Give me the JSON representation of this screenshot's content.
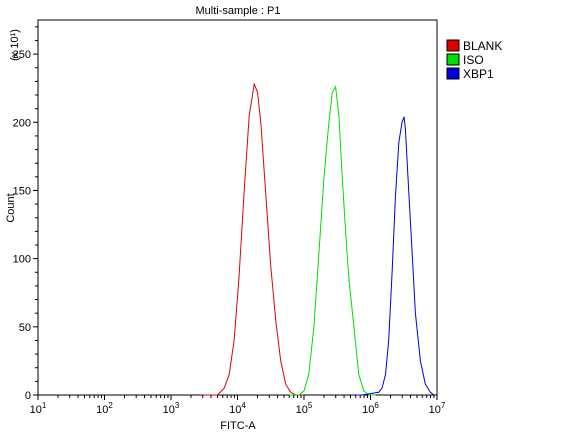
{
  "chart_data": {
    "type": "line",
    "title": "Multi-sample : P1",
    "xlabel": "FITC-A",
    "ylabel": "Count",
    "y_multiplier": "(x 10¹)",
    "x_scale": "log",
    "xlim": [
      10,
      10000000
    ],
    "ylim": [
      0,
      275
    ],
    "x_ticks": [
      {
        "value": 10,
        "base": "10",
        "exp": "1"
      },
      {
        "value": 100,
        "base": "10",
        "exp": "2"
      },
      {
        "value": 1000,
        "base": "10",
        "exp": "3"
      },
      {
        "value": 10000,
        "base": "10",
        "exp": "4"
      },
      {
        "value": 100000,
        "base": "10",
        "exp": "5"
      },
      {
        "value": 1000000,
        "base": "10",
        "exp": "6"
      },
      {
        "value": 10000000,
        "base": "10",
        "exp": "7"
      }
    ],
    "y_ticks": [
      0,
      50,
      100,
      150,
      200,
      250
    ],
    "legend_position": "right",
    "series": [
      {
        "name": "BLANK",
        "color": "#e00000",
        "points": [
          [
            3000,
            0
          ],
          [
            5000,
            0
          ],
          [
            6300,
            5
          ],
          [
            7500,
            15
          ],
          [
            8900,
            40
          ],
          [
            10500,
            85
          ],
          [
            12600,
            150
          ],
          [
            15000,
            205
          ],
          [
            17800,
            228
          ],
          [
            20000,
            222
          ],
          [
            22400,
            200
          ],
          [
            25100,
            165
          ],
          [
            28200,
            130
          ],
          [
            31600,
            95
          ],
          [
            37600,
            55
          ],
          [
            44700,
            25
          ],
          [
            53100,
            8
          ],
          [
            63100,
            2
          ],
          [
            75000,
            0
          ],
          [
            100000,
            0
          ]
        ]
      },
      {
        "name": "ISO",
        "color": "#00dd00",
        "points": [
          [
            60000,
            0
          ],
          [
            84000,
            0
          ],
          [
            100000,
            3
          ],
          [
            118000,
            15
          ],
          [
            141000,
            50
          ],
          [
            168000,
            105
          ],
          [
            200000,
            160
          ],
          [
            237000,
            200
          ],
          [
            266000,
            222
          ],
          [
            299000,
            226
          ],
          [
            335000,
            205
          ],
          [
            376000,
            160
          ],
          [
            422000,
            120
          ],
          [
            473000,
            85
          ],
          [
            562000,
            50
          ],
          [
            668000,
            15
          ],
          [
            794000,
            3
          ],
          [
            944000,
            0
          ],
          [
            1200000,
            0
          ]
        ]
      },
      {
        "name": "XBP1",
        "color": "#0000dd",
        "points": [
          [
            600000,
            0
          ],
          [
            750000,
            0
          ],
          [
            1000000,
            1
          ],
          [
            1330000,
            2
          ],
          [
            1490000,
            5
          ],
          [
            1680000,
            15
          ],
          [
            1880000,
            40
          ],
          [
            2110000,
            90
          ],
          [
            2370000,
            145
          ],
          [
            2660000,
            185
          ],
          [
            2980000,
            200
          ],
          [
            3200000,
            204
          ],
          [
            3350000,
            195
          ],
          [
            3760000,
            150
          ],
          [
            4220000,
            105
          ],
          [
            4730000,
            60
          ],
          [
            5620000,
            25
          ],
          [
            6680000,
            8
          ],
          [
            7940000,
            2
          ],
          [
            9000000,
            0
          ]
        ]
      }
    ]
  }
}
